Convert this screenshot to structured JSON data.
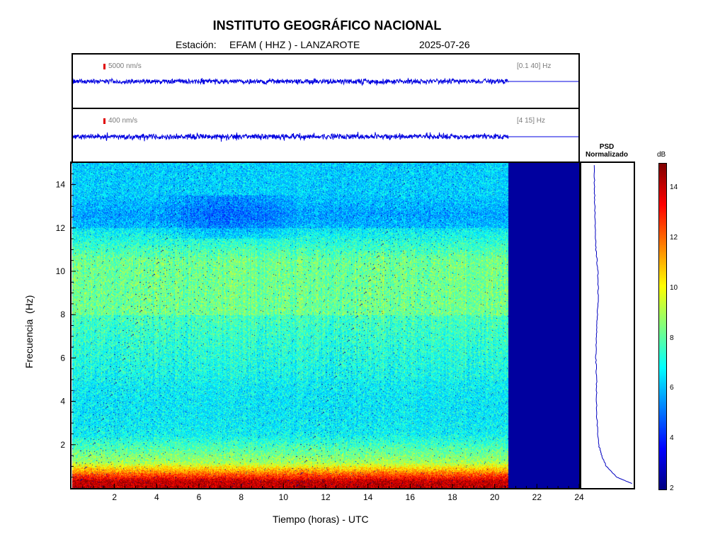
{
  "header": {
    "title": "INSTITUTO GEOGRÁFICO NACIONAL",
    "station_label": "Estación:",
    "station": "EFAM ( HHZ ) - LANZAROTE",
    "date": "2025-07-26"
  },
  "traces": [
    {
      "scale": "5000 nm/s",
      "band": "[0.1 40] Hz"
    },
    {
      "scale": "400 nm/s",
      "band": "[4 15] Hz"
    }
  ],
  "psd": {
    "title_line1": "PSD",
    "title_line2": "Normalizado"
  },
  "colorbar": {
    "unit": "dB",
    "ticks": [
      "2",
      "4",
      "6",
      "8",
      "10",
      "12",
      "14"
    ],
    "range": [
      2,
      15
    ]
  },
  "chart_data": {
    "type": "heatmap",
    "title": "INSTITUTO GEOGRÁFICO NACIONAL",
    "xlabel": "Tiempo (horas) - UTC",
    "ylabel": "Frecuencia  (Hz)",
    "xlim": [
      0,
      24
    ],
    "ylim": [
      0,
      15
    ],
    "x_ticks": [
      "2",
      "4",
      "6",
      "8",
      "10",
      "12",
      "14",
      "16",
      "18",
      "20",
      "22",
      "24"
    ],
    "y_ticks": [
      "2",
      "4",
      "6",
      "8",
      "10",
      "12",
      "14"
    ],
    "data_end_hour": 20.6,
    "colorscale": "jet",
    "psd_profile": {
      "frequency_hz": [
        0.2,
        0.5,
        1,
        1.5,
        2,
        3,
        4,
        5,
        6,
        7,
        8,
        9,
        10,
        11,
        12,
        13,
        14,
        15
      ],
      "normalized": [
        1.0,
        0.6,
        0.32,
        0.2,
        0.12,
        0.08,
        0.06,
        0.07,
        0.05,
        0.06,
        0.09,
        0.11,
        0.1,
        0.05,
        0.03,
        0.02,
        0.01,
        0.01
      ]
    }
  }
}
